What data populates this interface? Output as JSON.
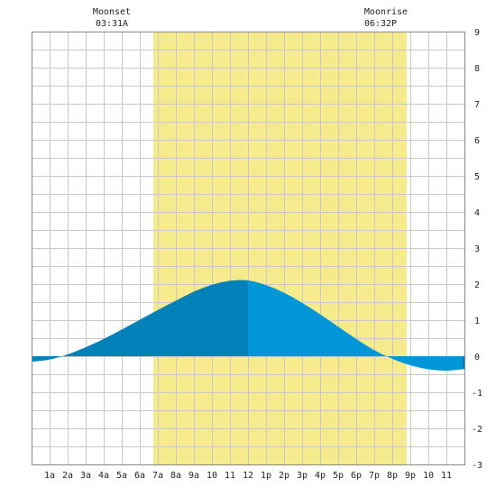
{
  "chart_data": {
    "type": "area",
    "moon_events": [
      {
        "label": "Moonset",
        "time": "03:31A"
      },
      {
        "label": "Moonrise",
        "time": "06:32P"
      }
    ],
    "x_tick_labels": [
      "1a",
      "2a",
      "3a",
      "4a",
      "5a",
      "6a",
      "7a",
      "8a",
      "9a",
      "10",
      "11",
      "12",
      "1p",
      "2p",
      "3p",
      "4p",
      "5p",
      "6p",
      "7p",
      "8p",
      "9p",
      "10",
      "11"
    ],
    "x_range_hours": [
      -1,
      23
    ],
    "ylim": [
      -3,
      9
    ],
    "y_ticks": [
      -3,
      -2,
      -1,
      0,
      1,
      2,
      3,
      4,
      5,
      6,
      7,
      8,
      9
    ],
    "highlight_hours": [
      5.75,
      19.8
    ],
    "x_hours": [
      -1,
      0,
      1,
      2,
      3,
      4,
      5,
      6,
      7,
      8,
      9,
      10,
      11,
      12,
      13,
      14,
      15,
      16,
      17,
      18,
      19,
      20,
      21,
      22,
      23
    ],
    "tide_values": [
      -0.15,
      -0.09,
      0.05,
      0.25,
      0.48,
      0.74,
      1.01,
      1.28,
      1.54,
      1.79,
      1.98,
      2.09,
      2.1,
      1.97,
      1.76,
      1.48,
      1.16,
      0.82,
      0.48,
      0.17,
      -0.07,
      -0.25,
      -0.36,
      -0.4,
      -0.36
    ],
    "high_tide_hour": 11,
    "low_tide_hour": 22.9,
    "colors": {
      "background": "#ffffff",
      "grid": "#c8c8c8",
      "highlight": "#f5eb8c",
      "tide_dark": "#0082b9",
      "tide_light": "#0096d7"
    },
    "grid": true
  }
}
